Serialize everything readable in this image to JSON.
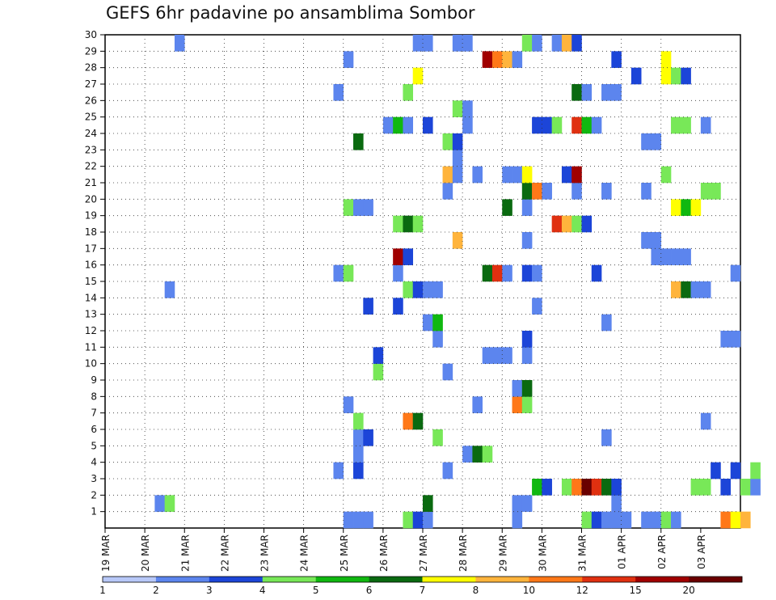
{
  "title": "GEFS 6hr padavine po ansamblima Sombor",
  "chart_data": {
    "type": "heatmap",
    "title": "GEFS 6hr padavine po ansamblima Sombor",
    "x_labels": [
      "19 MAR",
      "20 MAR",
      "21 MAR",
      "22 MAR",
      "23 MAR",
      "24 MAR",
      "25 MAR",
      "26 MAR",
      "27 MAR",
      "28 MAR",
      "29 MAR",
      "30 MAR",
      "31 MAR",
      "01 APR",
      "02 APR",
      "03 APR"
    ],
    "y_labels": [
      "1",
      "2",
      "3",
      "4",
      "5",
      "6",
      "7",
      "8",
      "9",
      "10",
      "11",
      "12",
      "13",
      "14",
      "15",
      "16",
      "17",
      "18",
      "19",
      "20",
      "21",
      "22",
      "23",
      "24",
      "25",
      "26",
      "27",
      "28",
      "29",
      "30"
    ],
    "y_range": [
      0,
      30
    ],
    "grid": true,
    "colorbar": {
      "labels": [
        "1",
        "2",
        "3",
        "4",
        "5",
        "6",
        "7",
        "8",
        "10",
        "12",
        "15",
        "20"
      ],
      "colors": [
        "#b8c8f8",
        "#5c85ee",
        "#1c45d8",
        "#78e858",
        "#10b810",
        "#0a6a10",
        "#ffff00",
        "#ffb43c",
        "#ff7818",
        "#e03010",
        "#a00000",
        "#6a0000"
      ]
    },
    "cells_note": "each cell: [member, time_index (6h steps from 19 MAR 00Z), class]",
    "cells": [
      [
        0,
        24,
        1
      ],
      [
        0,
        25,
        1
      ],
      [
        0,
        26,
        1
      ],
      [
        0,
        30,
        3
      ],
      [
        0,
        31,
        2
      ],
      [
        0,
        32,
        1
      ],
      [
        0,
        41,
        1
      ],
      [
        0,
        48,
        3
      ],
      [
        0,
        49,
        2
      ],
      [
        0,
        55,
        1
      ],
      [
        0,
        50,
        1
      ],
      [
        0,
        51,
        1
      ],
      [
        0,
        52,
        1
      ],
      [
        0,
        54,
        1
      ],
      [
        0,
        56,
        3
      ],
      [
        0,
        57,
        1
      ],
      [
        0,
        62,
        8
      ],
      [
        0,
        63,
        6
      ],
      [
        0,
        64,
        7
      ],
      [
        1,
        5,
        1
      ],
      [
        1,
        6,
        3
      ],
      [
        1,
        32,
        5
      ],
      [
        1,
        41,
        1
      ],
      [
        1,
        42,
        1
      ],
      [
        1,
        51,
        1
      ],
      [
        2,
        43,
        4
      ],
      [
        2,
        44,
        2
      ],
      [
        2,
        46,
        3
      ],
      [
        2,
        47,
        8
      ],
      [
        2,
        48,
        11
      ],
      [
        2,
        49,
        9
      ],
      [
        2,
        50,
        5
      ],
      [
        2,
        51,
        2
      ],
      [
        2,
        59,
        3
      ],
      [
        2,
        60,
        3
      ],
      [
        2,
        62,
        2
      ],
      [
        2,
        64,
        3
      ],
      [
        2,
        65,
        1
      ],
      [
        3,
        23,
        1
      ],
      [
        3,
        25,
        2
      ],
      [
        3,
        34,
        1
      ],
      [
        3,
        61,
        2
      ],
      [
        3,
        63,
        2
      ],
      [
        3,
        65,
        3
      ],
      [
        4,
        25,
        1
      ],
      [
        4,
        36,
        1
      ],
      [
        4,
        37,
        5
      ],
      [
        4,
        38,
        3
      ],
      [
        5,
        25,
        1
      ],
      [
        5,
        26,
        2
      ],
      [
        5,
        33,
        3
      ],
      [
        5,
        50,
        1
      ],
      [
        6,
        25,
        3
      ],
      [
        6,
        30,
        8
      ],
      [
        6,
        31,
        5
      ],
      [
        6,
        60,
        1
      ],
      [
        7,
        24,
        1
      ],
      [
        7,
        37,
        1
      ],
      [
        7,
        41,
        8
      ],
      [
        7,
        42,
        3
      ],
      [
        8,
        41,
        1
      ],
      [
        8,
        42,
        5
      ],
      [
        9,
        27,
        3
      ],
      [
        9,
        34,
        1
      ],
      [
        10,
        27,
        2
      ],
      [
        10,
        38,
        1
      ],
      [
        10,
        39,
        1
      ],
      [
        10,
        40,
        1
      ],
      [
        10,
        42,
        1
      ],
      [
        11,
        33,
        1
      ],
      [
        11,
        42,
        2
      ],
      [
        11,
        62,
        1
      ],
      [
        11,
        63,
        1
      ],
      [
        12,
        32,
        1
      ],
      [
        12,
        33,
        4
      ],
      [
        12,
        50,
        1
      ],
      [
        13,
        26,
        2
      ],
      [
        13,
        29,
        2
      ],
      [
        13,
        43,
        1
      ],
      [
        14,
        6,
        1
      ],
      [
        14,
        30,
        3
      ],
      [
        14,
        31,
        2
      ],
      [
        14,
        32,
        1
      ],
      [
        14,
        33,
        1
      ],
      [
        14,
        57,
        7
      ],
      [
        14,
        58,
        5
      ],
      [
        14,
        59,
        1
      ],
      [
        14,
        60,
        1
      ],
      [
        15,
        23,
        1
      ],
      [
        15,
        24,
        3
      ],
      [
        15,
        29,
        1
      ],
      [
        15,
        38,
        5
      ],
      [
        15,
        39,
        9
      ],
      [
        15,
        40,
        1
      ],
      [
        15,
        42,
        2
      ],
      [
        15,
        43,
        1
      ],
      [
        15,
        49,
        2
      ],
      [
        15,
        63,
        1
      ],
      [
        16,
        29,
        10
      ],
      [
        16,
        30,
        2
      ],
      [
        16,
        55,
        1
      ],
      [
        16,
        56,
        1
      ],
      [
        16,
        57,
        1
      ],
      [
        16,
        58,
        1
      ],
      [
        17,
        35,
        7
      ],
      [
        17,
        42,
        1
      ],
      [
        17,
        54,
        1
      ],
      [
        17,
        55,
        1
      ],
      [
        18,
        29,
        3
      ],
      [
        18,
        30,
        5
      ],
      [
        18,
        31,
        3
      ],
      [
        18,
        45,
        9
      ],
      [
        18,
        46,
        7
      ],
      [
        18,
        47,
        3
      ],
      [
        18,
        48,
        2
      ],
      [
        19,
        24,
        3
      ],
      [
        19,
        25,
        1
      ],
      [
        19,
        26,
        1
      ],
      [
        19,
        40,
        5
      ],
      [
        19,
        42,
        1
      ],
      [
        19,
        57,
        6
      ],
      [
        19,
        58,
        4
      ],
      [
        19,
        59,
        6
      ],
      [
        20,
        34,
        1
      ],
      [
        20,
        42,
        5
      ],
      [
        20,
        43,
        8
      ],
      [
        20,
        44,
        1
      ],
      [
        20,
        47,
        1
      ],
      [
        20,
        50,
        1
      ],
      [
        20,
        54,
        1
      ],
      [
        20,
        60,
        3
      ],
      [
        20,
        61,
        3
      ],
      [
        21,
        34,
        7
      ],
      [
        21,
        35,
        1
      ],
      [
        21,
        37,
        1
      ],
      [
        21,
        40,
        1
      ],
      [
        21,
        41,
        1
      ],
      [
        21,
        42,
        6
      ],
      [
        21,
        46,
        2
      ],
      [
        21,
        47,
        10
      ],
      [
        21,
        56,
        3
      ],
      [
        22,
        35,
        1
      ],
      [
        23,
        25,
        5
      ],
      [
        23,
        34,
        3
      ],
      [
        23,
        35,
        2
      ],
      [
        23,
        54,
        1
      ],
      [
        23,
        55,
        1
      ],
      [
        24,
        28,
        1
      ],
      [
        24,
        29,
        4
      ],
      [
        24,
        30,
        1
      ],
      [
        24,
        32,
        2
      ],
      [
        24,
        36,
        1
      ],
      [
        24,
        43,
        2
      ],
      [
        24,
        44,
        2
      ],
      [
        24,
        45,
        3
      ],
      [
        24,
        47,
        9
      ],
      [
        24,
        48,
        4
      ],
      [
        24,
        49,
        1
      ],
      [
        24,
        57,
        3
      ],
      [
        24,
        58,
        3
      ],
      [
        24,
        60,
        1
      ],
      [
        25,
        35,
        3
      ],
      [
        25,
        36,
        1
      ],
      [
        26,
        23,
        1
      ],
      [
        26,
        30,
        3
      ],
      [
        26,
        47,
        5
      ],
      [
        26,
        48,
        1
      ],
      [
        26,
        50,
        1
      ],
      [
        26,
        51,
        1
      ],
      [
        27,
        31,
        6
      ],
      [
        27,
        53,
        2
      ],
      [
        27,
        56,
        6
      ],
      [
        27,
        57,
        3
      ],
      [
        27,
        58,
        2
      ],
      [
        28,
        24,
        1
      ],
      [
        28,
        38,
        10
      ],
      [
        28,
        39,
        8
      ],
      [
        28,
        40,
        7
      ],
      [
        28,
        41,
        1
      ],
      [
        28,
        51,
        2
      ],
      [
        28,
        56,
        6
      ],
      [
        29,
        7,
        1
      ],
      [
        29,
        31,
        1
      ],
      [
        29,
        32,
        1
      ],
      [
        29,
        35,
        1
      ],
      [
        29,
        36,
        1
      ],
      [
        29,
        42,
        3
      ],
      [
        29,
        43,
        1
      ],
      [
        29,
        45,
        1
      ],
      [
        29,
        46,
        7
      ],
      [
        29,
        47,
        2
      ]
    ]
  }
}
